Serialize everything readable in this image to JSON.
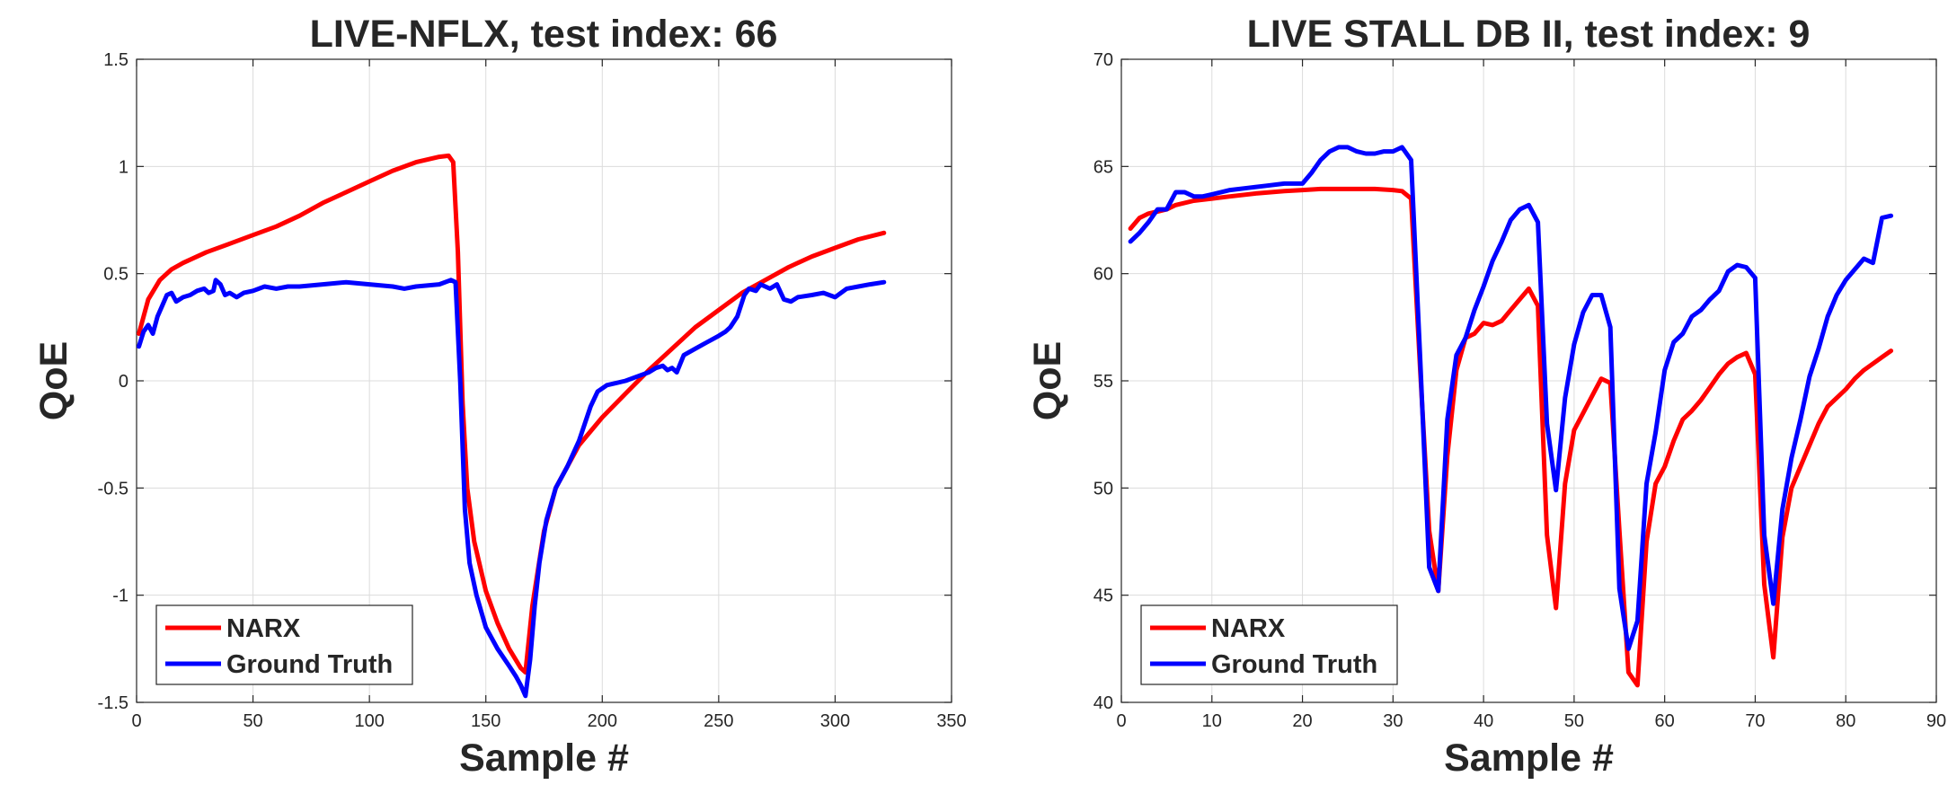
{
  "chart_data": [
    {
      "type": "line",
      "title": "LIVE-NFLX, test index: 66",
      "xlabel": "Sample #",
      "ylabel": "QoE",
      "xlim": [
        0,
        350
      ],
      "ylim": [
        -1.5,
        1.5
      ],
      "xticks": [
        0,
        50,
        100,
        150,
        200,
        250,
        300,
        350
      ],
      "yticks": [
        -1.5,
        -1,
        -0.5,
        0,
        0.5,
        1,
        1.5
      ],
      "xtick_labels": [
        "0",
        "50",
        "100",
        "150",
        "200",
        "250",
        "300",
        "350"
      ],
      "ytick_labels": [
        "-1.5",
        "-1",
        "-0.5",
        "0",
        "0.5",
        "1",
        "1.5"
      ],
      "grid": true,
      "legend_position": "bottom-left",
      "series": [
        {
          "name": "NARX",
          "color": "#ff0000",
          "x": [
            1,
            5,
            10,
            15,
            20,
            30,
            40,
            50,
            60,
            70,
            80,
            90,
            100,
            110,
            120,
            130,
            134,
            136,
            138,
            140,
            142,
            145,
            150,
            155,
            160,
            165,
            167,
            170,
            175,
            180,
            190,
            200,
            210,
            220,
            230,
            240,
            250,
            260,
            270,
            280,
            290,
            300,
            310,
            321
          ],
          "y": [
            0.22,
            0.38,
            0.47,
            0.52,
            0.55,
            0.6,
            0.64,
            0.68,
            0.72,
            0.77,
            0.83,
            0.88,
            0.93,
            0.98,
            1.02,
            1.045,
            1.05,
            1.02,
            0.6,
            -0.1,
            -0.5,
            -0.75,
            -0.98,
            -1.13,
            -1.25,
            -1.34,
            -1.36,
            -1.05,
            -0.7,
            -0.5,
            -0.3,
            -0.17,
            -0.06,
            0.05,
            0.15,
            0.25,
            0.33,
            0.41,
            0.47,
            0.53,
            0.58,
            0.62,
            0.66,
            0.69
          ]
        },
        {
          "name": "Ground Truth",
          "color": "#0000ff",
          "x": [
            1,
            3,
            5,
            7,
            9,
            11,
            13,
            15,
            17,
            20,
            23,
            26,
            29,
            31,
            33,
            34,
            36,
            38,
            40,
            43,
            46,
            50,
            55,
            60,
            65,
            70,
            80,
            90,
            100,
            110,
            115,
            120,
            130,
            135,
            137,
            139,
            141,
            143,
            146,
            150,
            155,
            160,
            163,
            165,
            167,
            169,
            171,
            173,
            176,
            180,
            185,
            190,
            195,
            198,
            202,
            206,
            210,
            215,
            220,
            223,
            226,
            228,
            230,
            232,
            235,
            240,
            245,
            250,
            253,
            255,
            258,
            261,
            263,
            266,
            268,
            270,
            272,
            275,
            278,
            281,
            284,
            290,
            295,
            300,
            305,
            310,
            315,
            321
          ],
          "y": [
            0.16,
            0.23,
            0.26,
            0.22,
            0.3,
            0.35,
            0.4,
            0.41,
            0.37,
            0.39,
            0.4,
            0.42,
            0.43,
            0.41,
            0.42,
            0.47,
            0.45,
            0.4,
            0.41,
            0.39,
            0.41,
            0.42,
            0.44,
            0.43,
            0.44,
            0.44,
            0.45,
            0.46,
            0.45,
            0.44,
            0.43,
            0.44,
            0.45,
            0.47,
            0.46,
            0.0,
            -0.6,
            -0.85,
            -1.0,
            -1.15,
            -1.25,
            -1.33,
            -1.38,
            -1.42,
            -1.47,
            -1.3,
            -1.05,
            -0.85,
            -0.65,
            -0.5,
            -0.4,
            -0.28,
            -0.12,
            -0.05,
            -0.02,
            -0.01,
            0.0,
            0.02,
            0.04,
            0.06,
            0.07,
            0.05,
            0.06,
            0.04,
            0.12,
            0.15,
            0.18,
            0.21,
            0.23,
            0.25,
            0.3,
            0.4,
            0.43,
            0.42,
            0.45,
            0.44,
            0.43,
            0.45,
            0.38,
            0.37,
            0.39,
            0.4,
            0.41,
            0.39,
            0.43,
            0.44,
            0.45,
            0.46
          ]
        }
      ]
    },
    {
      "type": "line",
      "title": "LIVE STALL DB II, test index: 9",
      "xlabel": "Sample #",
      "ylabel": "QoE",
      "xlim": [
        0,
        90
      ],
      "ylim": [
        40,
        70
      ],
      "xticks": [
        0,
        10,
        20,
        30,
        40,
        50,
        60,
        70,
        80,
        90
      ],
      "yticks": [
        40,
        45,
        50,
        55,
        60,
        65,
        70
      ],
      "xtick_labels": [
        "0",
        "10",
        "20",
        "30",
        "40",
        "50",
        "60",
        "70",
        "80",
        "90"
      ],
      "ytick_labels": [
        "40",
        "45",
        "50",
        "55",
        "60",
        "65",
        "70"
      ],
      "grid": true,
      "legend_position": "bottom-left",
      "series": [
        {
          "name": "NARX",
          "color": "#ff0000",
          "x": [
            1,
            2,
            3,
            4,
            5,
            6,
            8,
            10,
            12,
            15,
            18,
            20,
            22,
            25,
            28,
            30,
            31,
            32,
            33,
            34,
            35,
            36,
            37,
            38,
            39,
            40,
            41,
            42,
            43,
            44,
            45,
            46,
            47,
            48,
            49,
            50,
            51,
            52,
            53,
            54,
            55,
            56,
            57,
            58,
            59,
            60,
            61,
            62,
            63,
            64,
            65,
            66,
            67,
            68,
            69,
            70,
            71,
            72,
            73,
            74,
            75,
            76,
            77,
            78,
            79,
            80,
            81,
            82,
            83,
            84,
            85
          ],
          "y": [
            62.1,
            62.6,
            62.8,
            62.9,
            63.0,
            63.2,
            63.4,
            63.5,
            63.6,
            63.75,
            63.85,
            63.9,
            63.95,
            63.95,
            63.95,
            63.9,
            63.85,
            63.5,
            55.5,
            48.0,
            45.2,
            51.5,
            55.5,
            57.0,
            57.2,
            57.7,
            57.6,
            57.8,
            58.3,
            58.8,
            59.3,
            58.5,
            47.8,
            44.4,
            50.2,
            52.7,
            53.5,
            54.3,
            55.1,
            54.9,
            48.0,
            41.4,
            40.8,
            47.5,
            50.2,
            51.0,
            52.2,
            53.2,
            53.6,
            54.1,
            54.7,
            55.3,
            55.8,
            56.1,
            56.3,
            55.3,
            45.5,
            42.1,
            47.7,
            50.0,
            51.0,
            52.0,
            53.0,
            53.8,
            54.2,
            54.6,
            55.1,
            55.5,
            55.8,
            56.1,
            56.4
          ]
        },
        {
          "name": "Ground Truth",
          "color": "#0000ff",
          "x": [
            1,
            2,
            3,
            4,
            5,
            6,
            7,
            8,
            9,
            10,
            12,
            14,
            16,
            18,
            20,
            21,
            22,
            23,
            24,
            25,
            26,
            27,
            28,
            29,
            30,
            31,
            32,
            33,
            34,
            35,
            36,
            37,
            38,
            39,
            40,
            41,
            42,
            43,
            44,
            45,
            46,
            47,
            48,
            49,
            50,
            51,
            52,
            53,
            54,
            55,
            56,
            57,
            58,
            59,
            60,
            61,
            62,
            63,
            64,
            65,
            66,
            67,
            68,
            69,
            70,
            71,
            72,
            73,
            74,
            75,
            76,
            77,
            78,
            79,
            80,
            81,
            82,
            83,
            84,
            85
          ],
          "y": [
            61.5,
            61.9,
            62.4,
            63.0,
            63.0,
            63.8,
            63.8,
            63.6,
            63.6,
            63.7,
            63.9,
            64.0,
            64.1,
            64.2,
            64.2,
            64.7,
            65.3,
            65.7,
            65.9,
            65.9,
            65.7,
            65.6,
            65.6,
            65.7,
            65.7,
            65.9,
            65.3,
            56.0,
            46.3,
            45.2,
            53.2,
            56.2,
            57.0,
            58.3,
            59.4,
            60.6,
            61.5,
            62.5,
            63.0,
            63.2,
            62.4,
            53.0,
            49.9,
            54.2,
            56.7,
            58.2,
            59.0,
            59.0,
            57.5,
            45.3,
            42.5,
            43.8,
            50.2,
            52.6,
            55.5,
            56.8,
            57.2,
            58.0,
            58.3,
            58.8,
            59.2,
            60.1,
            60.4,
            60.3,
            59.8,
            47.8,
            44.6,
            49.0,
            51.4,
            53.2,
            55.2,
            56.5,
            58.0,
            59.0,
            59.7,
            60.2,
            60.7,
            60.5,
            62.6,
            62.7
          ]
        }
      ]
    }
  ]
}
